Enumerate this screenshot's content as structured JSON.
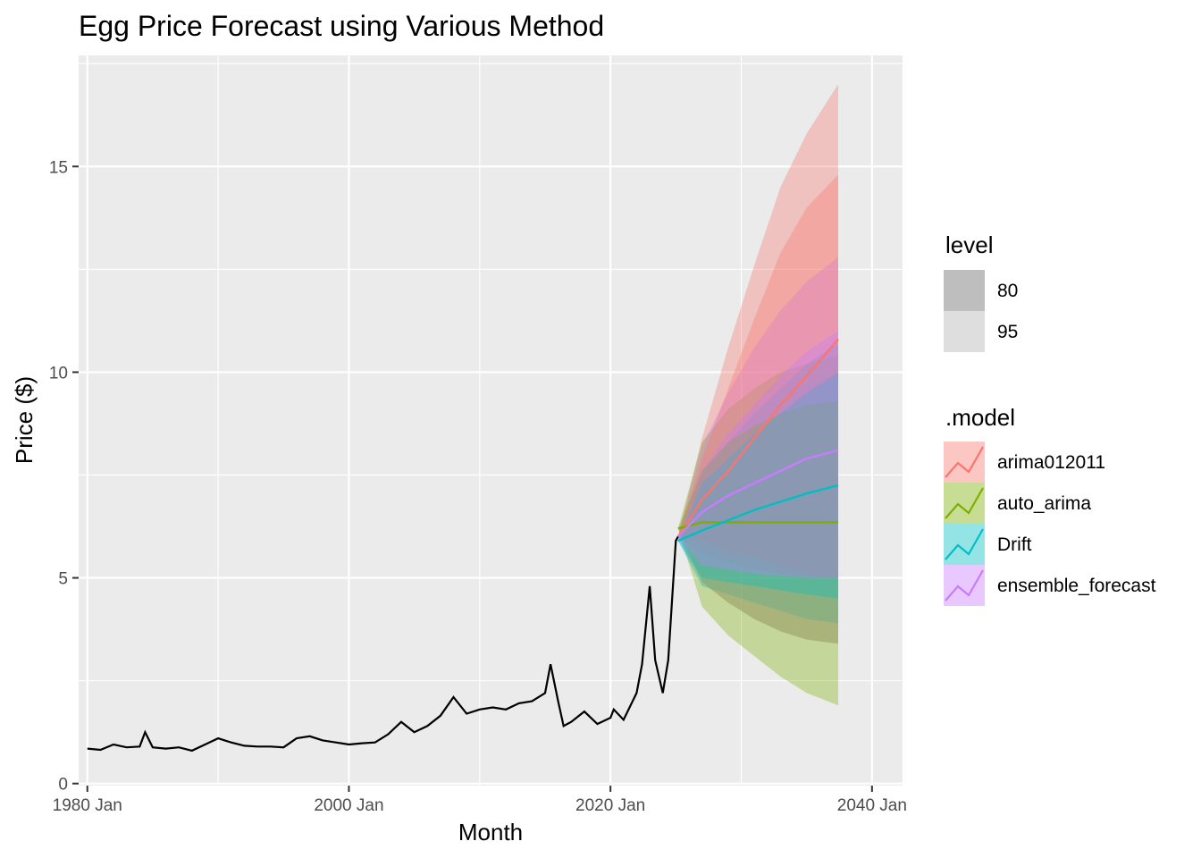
{
  "chart_data": {
    "type": "line",
    "title": "Egg Price Forecast using Various Method",
    "xlabel": "Month",
    "ylabel": "Price ($)",
    "xlim": [
      "1979-05",
      "2042-05"
    ],
    "ylim": [
      -0.05,
      17.7
    ],
    "x_ticks": [
      {
        "value": "1980-01",
        "label": "1980 Jan"
      },
      {
        "value": "2000-01",
        "label": "2000 Jan"
      },
      {
        "value": "2020-01",
        "label": "2020 Jan"
      },
      {
        "value": "2040-01",
        "label": "2040 Jan"
      }
    ],
    "y_ticks": [
      {
        "value": 0,
        "label": "0"
      },
      {
        "value": 5,
        "label": "5"
      },
      {
        "value": 10,
        "label": "10"
      },
      {
        "value": 15,
        "label": "15"
      }
    ],
    "grid": true,
    "legend_placement": "right",
    "history": {
      "x": [
        "1980-01",
        "1981-01",
        "1982-01",
        "1983-01",
        "1984-01",
        "1984-06",
        "1985-01",
        "1986-01",
        "1987-01",
        "1988-01",
        "1989-01",
        "1990-01",
        "1991-01",
        "1992-01",
        "1993-01",
        "1994-01",
        "1995-01",
        "1996-01",
        "1997-01",
        "1998-01",
        "1999-01",
        "2000-01",
        "2001-01",
        "2002-01",
        "2003-01",
        "2004-01",
        "2005-01",
        "2006-01",
        "2007-01",
        "2008-01",
        "2009-01",
        "2010-01",
        "2011-01",
        "2012-01",
        "2013-01",
        "2014-01",
        "2015-01",
        "2015-06",
        "2016-01",
        "2016-06",
        "2017-01",
        "2018-01",
        "2019-01",
        "2020-01",
        "2020-04",
        "2021-01",
        "2022-01",
        "2022-06",
        "2023-01",
        "2023-06",
        "2024-01",
        "2024-06",
        "2025-01",
        "2025-03"
      ],
      "y": [
        0.85,
        0.82,
        0.95,
        0.88,
        0.9,
        1.25,
        0.88,
        0.85,
        0.88,
        0.8,
        0.95,
        1.1,
        1.0,
        0.92,
        0.9,
        0.9,
        0.88,
        1.1,
        1.15,
        1.05,
        1.0,
        0.95,
        0.98,
        1.0,
        1.2,
        1.5,
        1.25,
        1.4,
        1.65,
        2.1,
        1.7,
        1.8,
        1.85,
        1.8,
        1.95,
        2.0,
        2.2,
        2.9,
        2.0,
        1.4,
        1.5,
        1.75,
        1.45,
        1.6,
        1.8,
        1.55,
        2.2,
        2.9,
        4.8,
        3.0,
        2.2,
        3.0,
        5.9,
        6.0
      ]
    },
    "forecast": {
      "x": [
        "2025-03",
        "2027-01",
        "2029-01",
        "2031-01",
        "2033-01",
        "2035-01",
        "2037-06"
      ],
      "series": [
        {
          "name": "arima012011",
          "color": "#F8766D",
          "mean": [
            6.0,
            6.9,
            7.6,
            8.4,
            9.2,
            9.9,
            10.8
          ],
          "lo80": [
            6.0,
            5.9,
            5.6,
            5.5,
            5.3,
            5.1,
            5.0
          ],
          "hi80": [
            6.0,
            7.9,
            9.6,
            11.3,
            12.9,
            14.0,
            14.8
          ],
          "lo95": [
            6.0,
            5.6,
            5.4,
            5.2,
            5.1,
            5.0,
            5.0
          ],
          "hi95": [
            6.0,
            8.4,
            10.6,
            12.6,
            14.5,
            15.8,
            17.0
          ]
        },
        {
          "name": "auto_arima",
          "color": "#7CAE00",
          "mean": [
            6.2,
            6.35,
            6.35,
            6.35,
            6.35,
            6.35,
            6.35
          ],
          "lo80": [
            6.2,
            4.9,
            4.4,
            4.0,
            3.7,
            3.5,
            3.4
          ],
          "hi80": [
            6.2,
            7.6,
            8.3,
            8.7,
            9.0,
            9.2,
            9.3
          ],
          "lo95": [
            6.2,
            4.3,
            3.6,
            3.1,
            2.6,
            2.2,
            1.9
          ],
          "hi95": [
            6.2,
            8.3,
            9.1,
            9.6,
            10.0,
            10.2,
            10.4
          ]
        },
        {
          "name": "Drift",
          "color": "#00BFC4",
          "mean": [
            5.9,
            6.15,
            6.4,
            6.65,
            6.85,
            7.05,
            7.25
          ],
          "lo80": [
            5.9,
            5.0,
            4.9,
            4.8,
            4.7,
            4.6,
            4.5
          ],
          "hi80": [
            5.9,
            7.3,
            7.9,
            8.5,
            9.0,
            9.5,
            10.0
          ],
          "lo95": [
            5.9,
            4.8,
            4.6,
            4.4,
            4.2,
            4.0,
            3.9
          ],
          "hi95": [
            5.9,
            7.6,
            8.3,
            9.0,
            9.6,
            10.2,
            10.7
          ]
        },
        {
          "name": "ensemble_forecast",
          "color": "#C77CFF",
          "mean": [
            6.0,
            6.6,
            7.0,
            7.3,
            7.6,
            7.9,
            8.1
          ],
          "lo80": [
            6.0,
            5.3,
            5.2,
            5.1,
            5.05,
            5.0,
            5.0
          ],
          "hi80": [
            6.0,
            7.6,
            8.5,
            9.2,
            9.9,
            10.5,
            11.0
          ],
          "lo95": [
            6.0,
            4.9,
            4.4,
            4.0,
            3.7,
            3.5,
            3.4
          ],
          "hi95": [
            6.0,
            8.2,
            9.5,
            10.6,
            11.5,
            12.2,
            12.8
          ]
        }
      ]
    },
    "legend_level": {
      "title": "level",
      "items": [
        "80",
        "95"
      ]
    },
    "legend_model": {
      "title": ".model",
      "items": [
        "arima012011",
        "auto_arima",
        "Drift",
        "ensemble_forecast"
      ]
    }
  }
}
